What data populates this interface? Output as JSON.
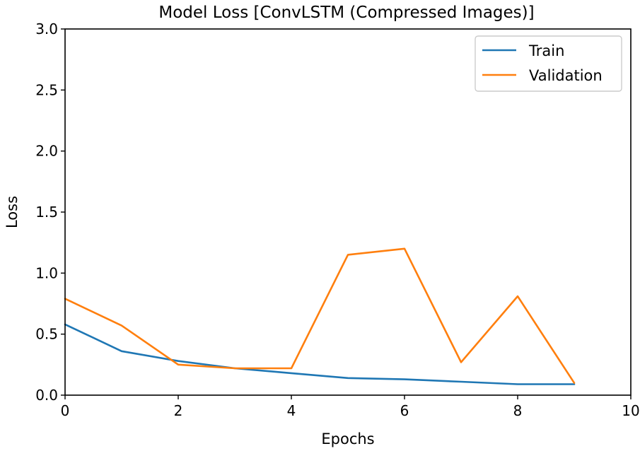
{
  "chart_data": {
    "type": "line",
    "title": "Model Loss [ConvLSTM (Compressed Images)]",
    "xlabel": "Epochs",
    "ylabel": "Loss",
    "xlim": [
      0,
      10
    ],
    "ylim": [
      0,
      3.0
    ],
    "x_ticks": [
      "0",
      "2",
      "4",
      "6",
      "8",
      "10"
    ],
    "y_ticks": [
      "0.0",
      "0.5",
      "1.0",
      "1.5",
      "2.0",
      "2.5",
      "3.0"
    ],
    "grid": false,
    "legend_position": "top-right",
    "x": [
      0,
      1,
      2,
      3,
      4,
      5,
      6,
      7,
      8,
      9
    ],
    "series": [
      {
        "name": "Train",
        "color": "#1f77b4",
        "values": [
          0.58,
          0.36,
          0.28,
          0.22,
          0.18,
          0.14,
          0.13,
          0.11,
          0.09,
          0.09
        ]
      },
      {
        "name": "Validation",
        "color": "#ff7f0e",
        "values": [
          0.79,
          0.57,
          0.25,
          0.22,
          0.22,
          1.15,
          1.2,
          0.27,
          0.81,
          0.1
        ]
      }
    ]
  }
}
